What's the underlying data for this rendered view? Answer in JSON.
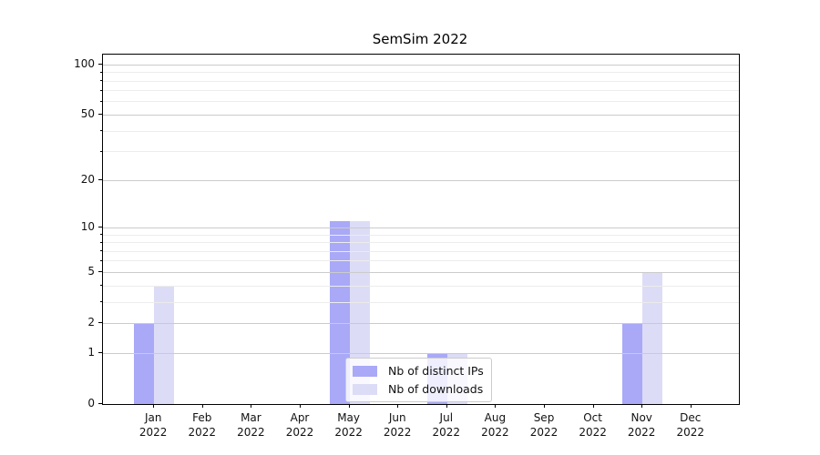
{
  "chart_data": {
    "type": "bar",
    "title": "SemSim 2022",
    "categories": [
      "Jan 2022",
      "Feb 2022",
      "Mar 2022",
      "Apr 2022",
      "May 2022",
      "Jun 2022",
      "Jul 2022",
      "Aug 2022",
      "Sep 2022",
      "Oct 2022",
      "Nov 2022",
      "Dec 2022"
    ],
    "series": [
      {
        "name": "Nb of distinct IPs",
        "color": "#a9a9f7",
        "values": [
          2,
          0,
          0,
          0,
          11,
          0,
          1,
          0,
          0,
          0,
          2,
          0
        ]
      },
      {
        "name": "Nb of downloads",
        "color": "#dcdcf7",
        "values": [
          4,
          0,
          0,
          0,
          11,
          0,
          1,
          0,
          0,
          0,
          5,
          0
        ]
      }
    ],
    "xlabel": "",
    "ylabel": "",
    "scale": "log1p",
    "ylim": [
      0,
      115
    ],
    "yticks": [
      0,
      1,
      2,
      5,
      10,
      20,
      50,
      100
    ],
    "yticks_minor": [
      3,
      4,
      6,
      7,
      8,
      9,
      30,
      40,
      60,
      70,
      80,
      90
    ],
    "grid": "on",
    "legend_position": "lower center",
    "colors": {
      "grid_major": "#cbcbcb",
      "grid_minor": "#ececec",
      "axis_frame": "#000000",
      "background": "#ffffff"
    }
  }
}
